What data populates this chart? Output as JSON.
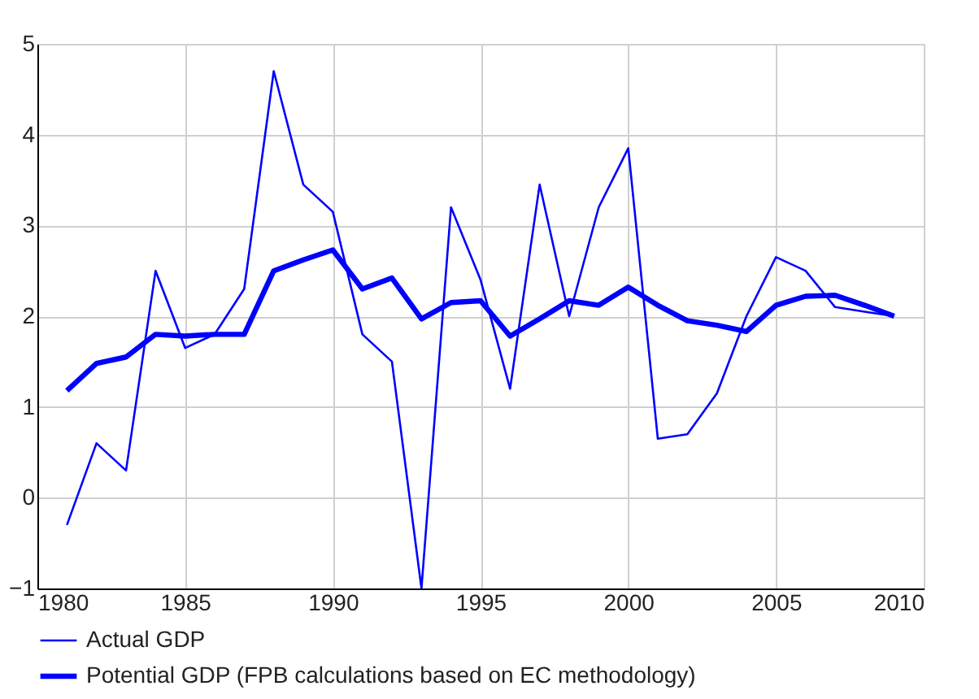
{
  "chart_data": {
    "type": "line",
    "x": [
      1981,
      1982,
      1983,
      1984,
      1985,
      1986,
      1987,
      1988,
      1989,
      1990,
      1991,
      1992,
      1993,
      1994,
      1995,
      1996,
      1997,
      1998,
      1999,
      2000,
      2001,
      2002,
      2003,
      2004,
      2005,
      2006,
      2007,
      2008,
      2009
    ],
    "series": [
      {
        "name": "Actual GDP",
        "color": "#0000ff",
        "values": [
          -0.3,
          0.6,
          0.3,
          2.5,
          1.65,
          1.8,
          2.3,
          4.7,
          3.45,
          3.15,
          1.8,
          1.5,
          -1.0,
          3.2,
          2.4,
          1.2,
          3.45,
          2.0,
          3.2,
          3.85,
          0.65,
          0.7,
          1.15,
          2.0,
          2.65,
          2.5,
          2.1,
          2.05,
          2.0
        ]
      },
      {
        "name": "Potential GDP (FPB calculations based on EC methodology)",
        "color": "#0000ff",
        "values": [
          1.18,
          1.48,
          1.55,
          1.8,
          1.78,
          1.8,
          1.8,
          2.5,
          2.62,
          2.73,
          2.3,
          2.42,
          1.97,
          2.15,
          2.17,
          1.78,
          1.97,
          2.17,
          2.12,
          2.32,
          2.12,
          1.95,
          1.9,
          1.83,
          2.12,
          2.22,
          2.23,
          2.12,
          2.0
        ]
      }
    ],
    "xlim": [
      1980,
      2010
    ],
    "xticks": [
      1980,
      1985,
      1990,
      1995,
      2000,
      2005,
      2010
    ],
    "ylim": [
      -1,
      5
    ],
    "yticks": [
      -1,
      0,
      1,
      2,
      3,
      4,
      5
    ],
    "grid": true,
    "legend": "bottom",
    "marker": "none",
    "line_style": "solid"
  }
}
